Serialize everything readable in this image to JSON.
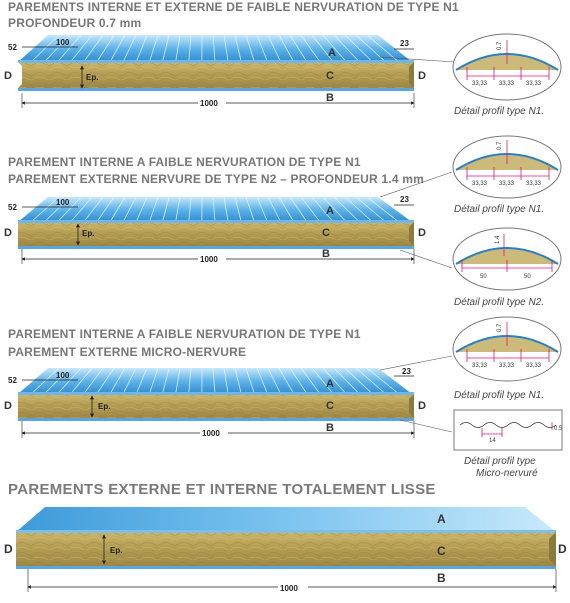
{
  "sections": [
    {
      "title_1": "PAREMENTS INTERNE ET EXTERNE DE FAIBLE NERVURATION DE TYPE N1",
      "title_2": "PROFONDEUR 0.7 mm",
      "dims": {
        "left": "52",
        "rib": "100",
        "right": "23",
        "length": "1000",
        "thickness": "Ep."
      },
      "labels": {
        "a": "A",
        "b": "B",
        "c": "C",
        "d": "D"
      },
      "details": [
        {
          "caption": "Détail profil type N1.",
          "depth": "0.7",
          "spacings": [
            "33,33",
            "33,33",
            "33,33"
          ]
        }
      ]
    },
    {
      "title_1": "PAREMENT INTERNE A FAIBLE NERVURATION DE TYPE N1",
      "title_2": "PAREMENT EXTERNE NERVURE DE TYPE N2 – PROFONDEUR 1.4 mm",
      "dims": {
        "left": "52",
        "rib": "100",
        "right": "23",
        "length": "1000",
        "thickness": "Ep."
      },
      "labels": {
        "a": "A",
        "b": "B",
        "c": "C",
        "d": "D"
      },
      "details": [
        {
          "caption": "Détail profil type N1.",
          "depth": "0.7",
          "spacings": [
            "33,33",
            "33,33",
            "33,33"
          ]
        },
        {
          "caption": "Détail profil type N2.",
          "depth": "1.4",
          "spacings": [
            "50",
            "50"
          ]
        }
      ]
    },
    {
      "title_1": "PAREMENT INTERNE A FAIBLE NERVURATION DE TYPE N1",
      "title_2": "PAREMENT EXTERNE MICRO-NERVURE",
      "dims": {
        "left": "52",
        "rib": "100",
        "right": "23",
        "length": "1000",
        "thickness": "Ep."
      },
      "labels": {
        "a": "A",
        "b": "B",
        "c": "C",
        "d": "D"
      },
      "details": [
        {
          "caption": "Détail profil type N1.",
          "depth": "0.7",
          "spacings": [
            "33,33",
            "33,33",
            "33,33"
          ]
        },
        {
          "caption_1": "Détail profil type",
          "caption_2": "Micro-nervuré",
          "spacing": "14",
          "depth": "0.5"
        }
      ]
    },
    {
      "title_1": "PAREMENTS EXTERNE ET INTERNE TOTALEMENT LISSE",
      "dims": {
        "length": "1000",
        "thickness": "Ep."
      },
      "labels": {
        "a": "A",
        "b": "B",
        "c": "C",
        "d": "D"
      }
    }
  ],
  "colors": {
    "skin_blue": "#4aa3e0",
    "skin_light": "#bfe3fa",
    "core": "#b8a258",
    "core_dark": "#8c7a3c",
    "dimension_pink": "#e0177c"
  }
}
